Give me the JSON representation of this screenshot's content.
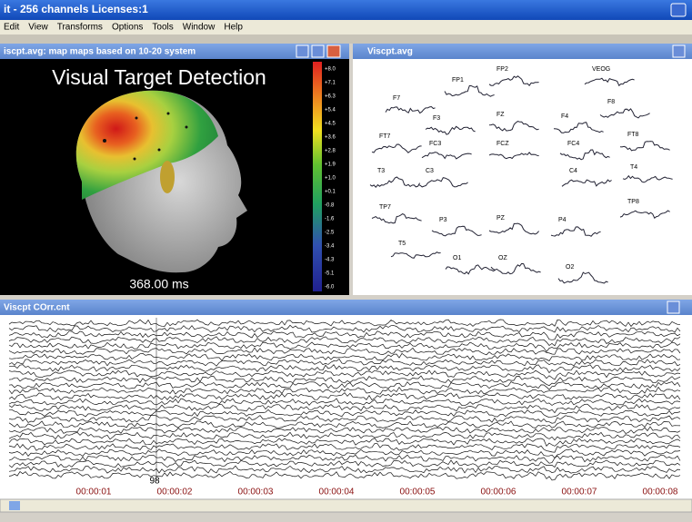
{
  "app": {
    "title": "it - 256 channels Licenses:1",
    "menu": [
      "Edit",
      "View",
      "Transforms",
      "Options",
      "Tools",
      "Window",
      "Help"
    ]
  },
  "map_window": {
    "title": "iscpt.avg: map maps based on 10-20 system",
    "heading": "Visual Target Detection",
    "time": "368.00 ms",
    "scale": [
      "+8.0",
      "+7.1",
      "+6.3",
      "+5.4",
      "+4.5",
      "+3.6",
      "+2.8",
      "+1.9",
      "+1.0",
      "+0.1",
      "-0.8",
      "-1.6",
      "-2.5",
      "-3.4",
      "-4.3",
      "-5.1",
      "-6.0"
    ]
  },
  "average_window": {
    "title": "Viscpt.avg",
    "electrodes": [
      "FP1",
      "FP2",
      "VEOG",
      "F7",
      "F3",
      "FZ",
      "F4",
      "F8",
      "FT7",
      "FC3",
      "FCZ",
      "FC4",
      "FT8",
      "T3",
      "C3",
      "C4",
      "T4",
      "TP7",
      "P3",
      "PZ",
      "P4",
      "TP8",
      "T5",
      "O1",
      "OZ",
      "O2"
    ]
  },
  "raw_window": {
    "title": "Viscpt COrr.cnt",
    "marker": "98",
    "times": [
      "00:00:01",
      "00:00:02",
      "00:00:03",
      "00:00:04",
      "00:00:05",
      "00:00:06",
      "00:00:07",
      "00:00:08"
    ]
  }
}
